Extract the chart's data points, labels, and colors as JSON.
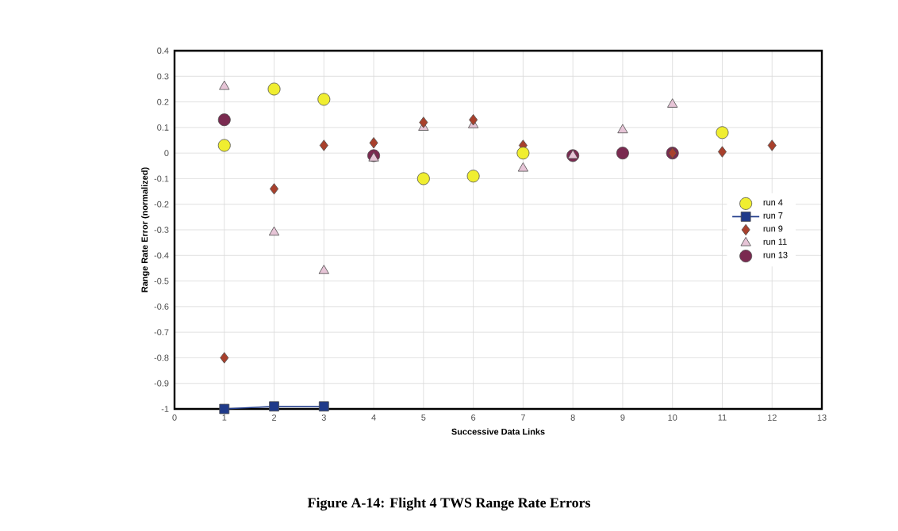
{
  "chart_data": {
    "type": "scatter",
    "title": "Figure A-14:  Flight 4 TWS Range Rate Errors",
    "xlabel": "Successive Data Links",
    "ylabel": "Range Rate Error (normalized)",
    "xlim": [
      0,
      13
    ],
    "xticks": [
      0,
      1,
      2,
      3,
      4,
      5,
      6,
      7,
      8,
      9,
      10,
      11,
      12,
      13
    ],
    "ylim": [
      -1,
      0.4
    ],
    "yticks": [
      -1,
      -0.9,
      -0.8,
      -0.7,
      -0.6,
      -0.5,
      -0.4,
      -0.3,
      -0.2,
      -0.1,
      0,
      0.1,
      0.2,
      0.3,
      0.4
    ],
    "grid": true,
    "legend": "right",
    "series": [
      {
        "name": "run 4",
        "color": "#f0ee30",
        "marker": "circle",
        "x": [
          1,
          2,
          3,
          5,
          6,
          7,
          11
        ],
        "values": [
          0.03,
          0.25,
          0.21,
          -0.1,
          -0.09,
          0.0,
          0.08
        ]
      },
      {
        "name": "run 7",
        "type": "line",
        "color": "#1f3a8a",
        "marker": "square",
        "x": [
          1,
          2,
          3
        ],
        "values": [
          -1.0,
          -0.99,
          -0.99
        ]
      },
      {
        "name": "run 9",
        "color": "#a8402c",
        "marker": "diamond",
        "x": [
          1,
          2,
          3,
          4,
          5,
          6,
          7,
          10,
          11,
          12
        ],
        "values": [
          -0.8,
          -0.14,
          0.03,
          0.04,
          0.12,
          0.13,
          0.03,
          0.0,
          0.005,
          0.03
        ]
      },
      {
        "name": "run 11",
        "color": "#e6c4d6",
        "marker": "triangle",
        "x": [
          1,
          2,
          3,
          4,
          5,
          6,
          7,
          8,
          9,
          10
        ],
        "values": [
          0.26,
          -0.31,
          -0.46,
          -0.02,
          0.1,
          0.11,
          -0.06,
          -0.01,
          0.09,
          0.19
        ]
      },
      {
        "name": "run 13",
        "color": "#7a2a50",
        "marker": "circle",
        "x": [
          1,
          4,
          8,
          9,
          10
        ],
        "values": [
          0.13,
          -0.01,
          -0.01,
          0.0,
          0.0
        ]
      }
    ]
  }
}
